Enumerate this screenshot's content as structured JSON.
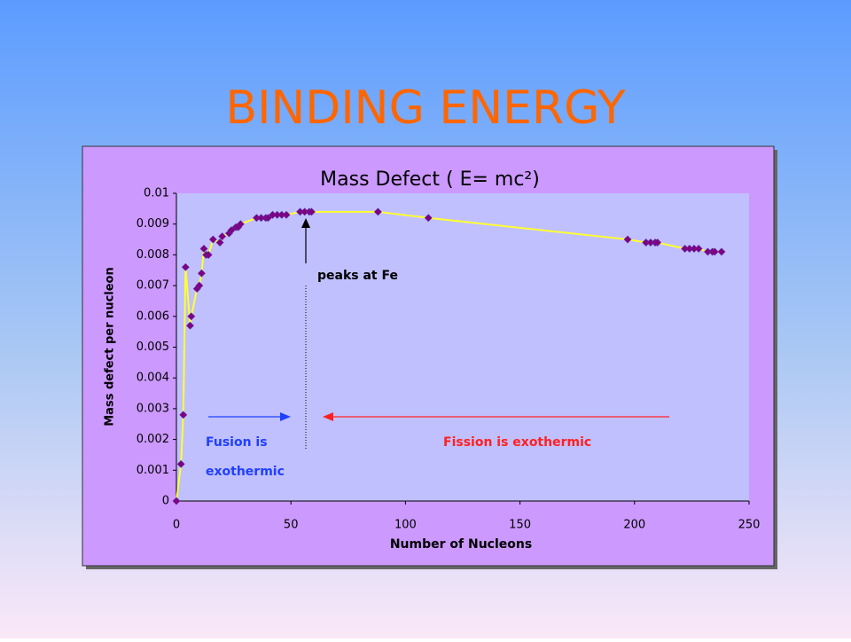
{
  "slide": {
    "title": "BINDING ENERGY"
  },
  "chart_data": {
    "type": "scatter-line",
    "title": "Mass Defect  ( E= mc²)",
    "x_label": "Number of Nucleons",
    "y_label": "Mass defect per nucleon",
    "xlim": [
      0,
      250
    ],
    "xticks": [
      0,
      50,
      100,
      150,
      200,
      250
    ],
    "ylim": [
      0,
      0.01
    ],
    "yticks": [
      0,
      0.001,
      0.002,
      0.003,
      0.004,
      0.005,
      0.006,
      0.007,
      0.008,
      0.009,
      0.01
    ],
    "series": [
      {
        "line_color": "#ffff33",
        "color": "#800080",
        "x": [
          0,
          2,
          3,
          4,
          6,
          6.5,
          9,
          10,
          11,
          12,
          13,
          14,
          16,
          19,
          20,
          23,
          24,
          26,
          27,
          28,
          35,
          37,
          39,
          40,
          42,
          44,
          46,
          48,
          54,
          56,
          58,
          59,
          88,
          110,
          197,
          205,
          207,
          209,
          210,
          222,
          224,
          226,
          228,
          232,
          234,
          235,
          238
        ],
        "values": [
          0,
          0.0012,
          0.0028,
          0.0076,
          0.0057,
          0.006,
          0.0069,
          0.007,
          0.0074,
          0.0082,
          0.008,
          0.008,
          0.0085,
          0.0084,
          0.0086,
          0.0087,
          0.0088,
          0.0089,
          0.0089,
          0.009,
          0.0092,
          0.0092,
          0.0092,
          0.0092,
          0.0093,
          0.0093,
          0.0093,
          0.0093,
          0.0094,
          0.0094,
          0.0094,
          0.0094,
          0.0094,
          0.0092,
          0.0085,
          0.0084,
          0.0084,
          0.0084,
          0.0084,
          0.0082,
          0.0082,
          0.0082,
          0.0082,
          0.0081,
          0.0081,
          0.0081,
          0.0081
        ]
      }
    ],
    "annotations": [
      "peaks at Fe",
      "Fusion is",
      "exothermic",
      "Fission is exothermic"
    ]
  }
}
